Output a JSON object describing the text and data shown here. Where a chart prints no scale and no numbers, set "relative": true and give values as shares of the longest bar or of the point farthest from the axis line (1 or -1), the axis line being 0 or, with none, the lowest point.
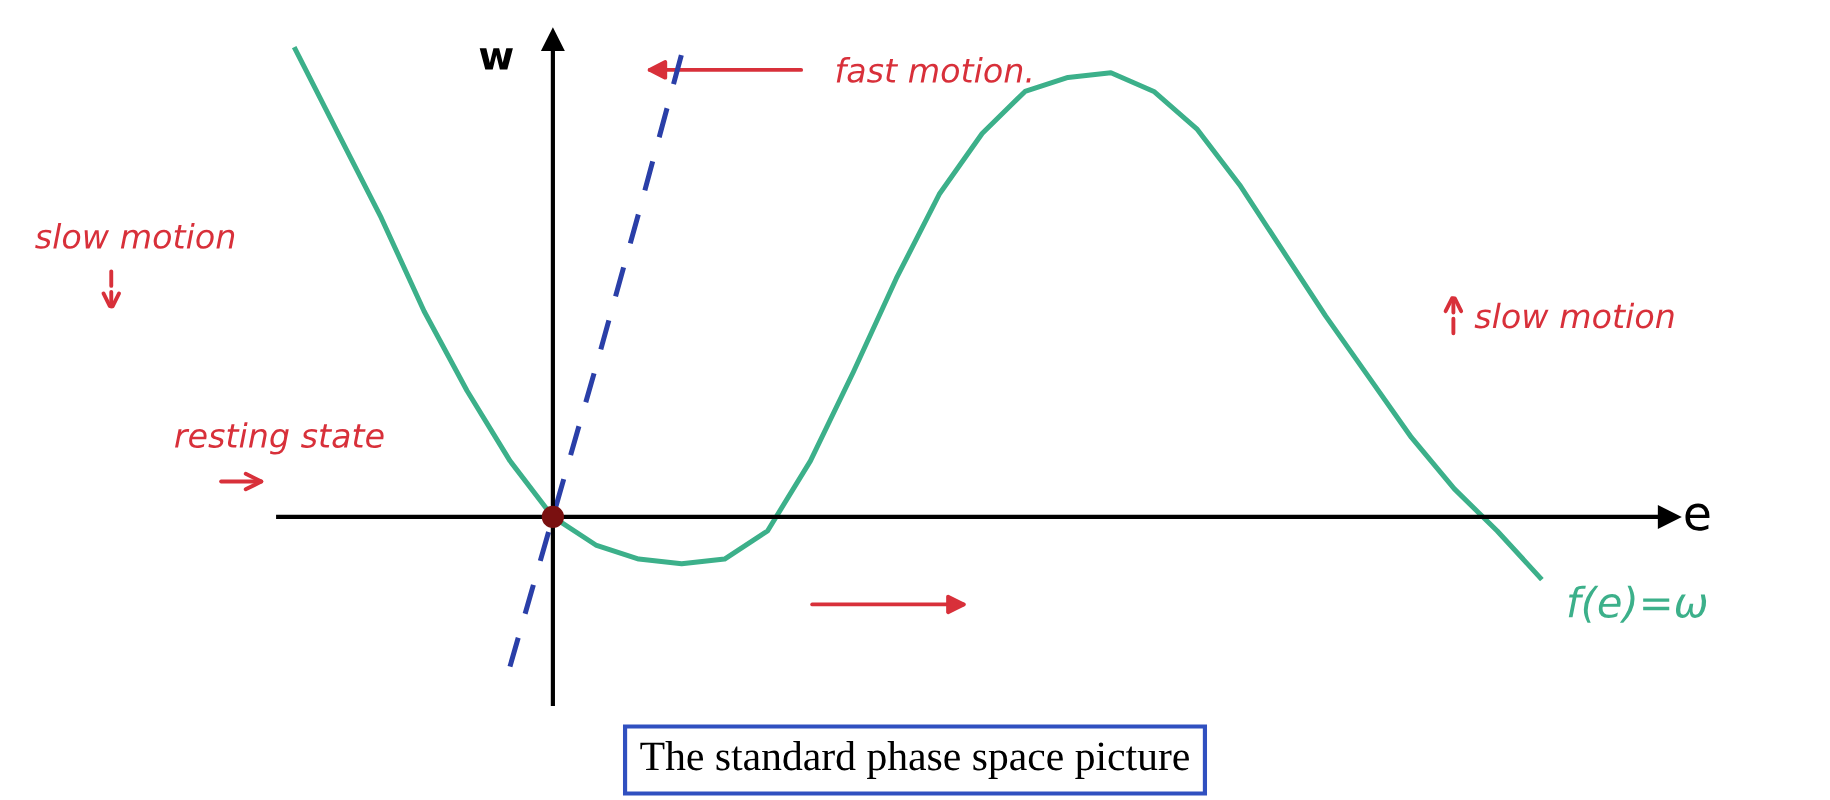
{
  "chart_data": {
    "type": "line",
    "title": "The standard phase space picture",
    "xlabel": "e",
    "ylabel": "w",
    "relative": true,
    "legend": false,
    "categories": [
      null,
      null,
      null,
      null,
      null,
      null,
      null,
      null,
      null,
      null,
      null,
      null,
      null,
      null,
      null,
      null,
      null,
      null,
      null,
      null,
      null,
      null,
      null,
      null,
      null,
      null,
      null,
      null,
      null,
      null
    ],
    "series": [
      {
        "name": "f(e)=ω",
        "color": "#3cb08a",
        "line_style": "solid",
        "values": [
          1.0,
          0.82,
          0.64,
          0.44,
          0.27,
          0.12,
          0.0,
          -0.06,
          -0.09,
          -0.1,
          -0.09,
          -0.03,
          0.12,
          0.31,
          0.51,
          0.69,
          0.82,
          0.91,
          0.94,
          0.95,
          0.91,
          0.83,
          0.71,
          0.57,
          0.43,
          0.3,
          0.17,
          0.06,
          -0.03,
          -0.13
        ]
      },
      {
        "color": "#2a3fa8",
        "line_style": "dashed",
        "values": [
          null,
          null,
          null,
          null,
          null,
          -0.32,
          0.0,
          0.32,
          0.65,
          0.99,
          null,
          null,
          null,
          null,
          null,
          null,
          null,
          null,
          null,
          null,
          null,
          null,
          null,
          null,
          null,
          null,
          null,
          null,
          null,
          null
        ]
      }
    ],
    "annotations": [
      "fast motion.",
      "slow motion",
      "slow motion",
      "resting state"
    ]
  }
}
